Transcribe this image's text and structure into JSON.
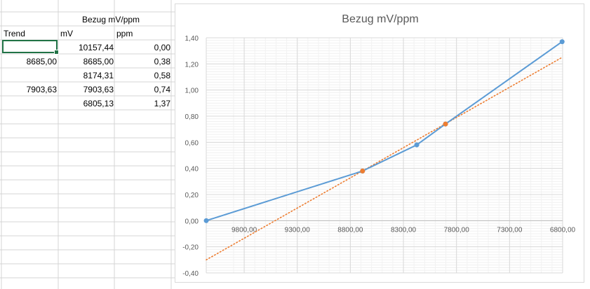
{
  "sheet": {
    "header_title": "Bezug mV/ppm",
    "columns": [
      "Trend",
      "mV",
      "ppm"
    ],
    "rows": [
      {
        "trend": "",
        "mv": "10157,44",
        "ppm": "0,00"
      },
      {
        "trend": "8685,00",
        "mv": "8685,00",
        "ppm": "0,38"
      },
      {
        "trend": "",
        "mv": "8174,31",
        "ppm": "0,58"
      },
      {
        "trend": "7903,63",
        "mv": "7903,63",
        "ppm": "0,74"
      },
      {
        "trend": "",
        "mv": "6805,13",
        "ppm": "1,37"
      }
    ]
  },
  "chart_data": {
    "type": "line",
    "title": "Bezug mV/ppm",
    "xlabel": "",
    "ylabel": "",
    "x_reversed": true,
    "xlim": [
      10157.44,
      6800
    ],
    "ylim": [
      -0.4,
      1.4
    ],
    "x_ticks": [
      9800,
      9300,
      8800,
      8300,
      7800,
      7300,
      6800
    ],
    "x_tick_labels": [
      "9800,00",
      "9300,00",
      "8800,00",
      "8300,00",
      "7800,00",
      "7300,00",
      "6800,00"
    ],
    "y_ticks": [
      -0.4,
      -0.2,
      0,
      0.2,
      0.4,
      0.6,
      0.8,
      1.0,
      1.2,
      1.4
    ],
    "y_tick_labels": [
      "-0,40",
      "-0,20",
      "0,00",
      "0,20",
      "0,40",
      "0,60",
      "0,80",
      "1,00",
      "1,20",
      "1,40"
    ],
    "grid": true,
    "legend": "none",
    "series": [
      {
        "color": "#5b9bd5",
        "x": [
          10157.44,
          8685.0,
          8174.31,
          7903.63,
          6805.13
        ],
        "y": [
          0.0,
          0.38,
          0.58,
          0.74,
          1.37
        ]
      },
      {
        "color": "#ed7d31",
        "x": [
          8685.0,
          7903.63
        ],
        "y": [
          0.38,
          0.74
        ],
        "markers_only": true
      }
    ],
    "trendline": {
      "color": "#ed7d31",
      "style": "dotted",
      "x": [
        10157.44,
        6805.13
      ],
      "y": [
        -0.3,
        1.25
      ]
    }
  }
}
